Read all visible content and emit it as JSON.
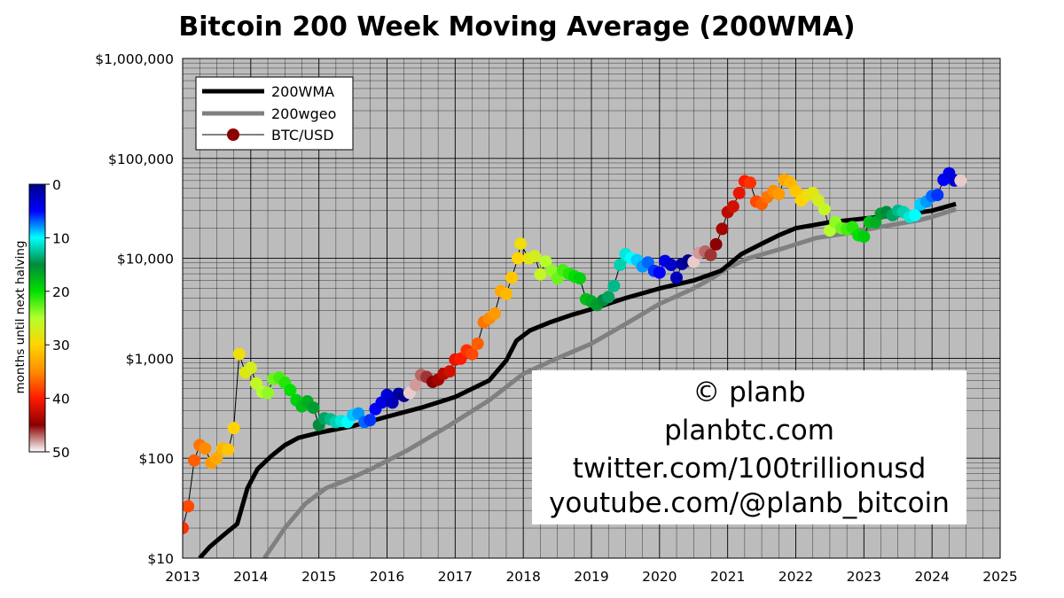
{
  "chart_data": {
    "type": "scatter",
    "title": "Bitcoin 200 Week Moving Average (200WMA)",
    "xlabel": "",
    "ylabel": "",
    "yscale": "log",
    "xlim": [
      2013,
      2025
    ],
    "ylim": [
      10,
      1000000
    ],
    "x_ticks": [
      "2013",
      "2014",
      "2015",
      "2016",
      "2017",
      "2018",
      "2019",
      "2020",
      "2021",
      "2022",
      "2023",
      "2024",
      "2025"
    ],
    "y_ticks": [
      {
        "value": 10,
        "label": "$10"
      },
      {
        "value": 100,
        "label": "$100"
      },
      {
        "value": 1000,
        "label": "$1,000"
      },
      {
        "value": 10000,
        "label": "$10,000"
      },
      {
        "value": 100000,
        "label": "$100,000"
      },
      {
        "value": 1000000,
        "label": "$1,000,000"
      }
    ],
    "grid": true,
    "background": "#bcbcbc",
    "legend_position": "top-left",
    "legend": [
      {
        "label": "200WMA",
        "color": "#000000",
        "kind": "thick-line"
      },
      {
        "label": "200wgeo",
        "color": "#808080",
        "kind": "thick-line"
      },
      {
        "label": "BTC/USD",
        "color": "#8b0000",
        "kind": "line-marker"
      }
    ],
    "colorbar": {
      "label": "months until next halving",
      "min": 0,
      "max": 50,
      "ticks": [
        "0",
        "10",
        "20",
        "30",
        "40",
        "50"
      ]
    },
    "credits": [
      "© planb",
      "planbtc.com",
      "twitter.com/100trillionusd",
      "youtube.com/@planb_bitcoin"
    ],
    "series": [
      {
        "name": "200WMA",
        "color": "#000000",
        "points": [
          [
            2013.25,
            10
          ],
          [
            2013.4,
            13
          ],
          [
            2013.6,
            17
          ],
          [
            2013.8,
            22
          ],
          [
            2013.95,
            50
          ],
          [
            2014.1,
            78
          ],
          [
            2014.3,
            105
          ],
          [
            2014.5,
            135
          ],
          [
            2014.7,
            160
          ],
          [
            2015.0,
            180
          ],
          [
            2015.5,
            210
          ],
          [
            2016.0,
            260
          ],
          [
            2016.5,
            320
          ],
          [
            2017.0,
            410
          ],
          [
            2017.5,
            600
          ],
          [
            2017.75,
            950
          ],
          [
            2017.9,
            1500
          ],
          [
            2018.1,
            1900
          ],
          [
            2018.4,
            2300
          ],
          [
            2018.7,
            2700
          ],
          [
            2019.0,
            3100
          ],
          [
            2019.5,
            4000
          ],
          [
            2020.0,
            5000
          ],
          [
            2020.5,
            6000
          ],
          [
            2020.9,
            7500
          ],
          [
            2021.0,
            8500
          ],
          [
            2021.2,
            11000
          ],
          [
            2021.5,
            14000
          ],
          [
            2021.75,
            17000
          ],
          [
            2022.0,
            20000
          ],
          [
            2022.5,
            23000
          ],
          [
            2023.0,
            25000
          ],
          [
            2023.5,
            27000
          ],
          [
            2024.0,
            30000
          ],
          [
            2024.35,
            35000
          ]
        ]
      },
      {
        "name": "200wgeo",
        "color": "#808080",
        "points": [
          [
            2014.2,
            10
          ],
          [
            2014.5,
            20
          ],
          [
            2014.8,
            35
          ],
          [
            2015.1,
            50
          ],
          [
            2015.4,
            60
          ],
          [
            2015.8,
            80
          ],
          [
            2016.3,
            120
          ],
          [
            2016.9,
            210
          ],
          [
            2017.5,
            380
          ],
          [
            2018.0,
            700
          ],
          [
            2018.5,
            1000
          ],
          [
            2019.0,
            1400
          ],
          [
            2019.5,
            2200
          ],
          [
            2020.0,
            3500
          ],
          [
            2020.5,
            5000
          ],
          [
            2020.8,
            6500
          ],
          [
            2021.0,
            8000
          ],
          [
            2021.3,
            10000
          ],
          [
            2021.8,
            12500
          ],
          [
            2022.3,
            16000
          ],
          [
            2022.8,
            18000
          ],
          [
            2023.3,
            21000
          ],
          [
            2023.8,
            24000
          ],
          [
            2024.0,
            26000
          ],
          [
            2024.35,
            31000
          ]
        ]
      },
      {
        "name": "BTC/USD",
        "value_key": "months_until_next_halving",
        "points": [
          [
            2013.0,
            20,
            39
          ],
          [
            2013.08,
            33,
            38
          ],
          [
            2013.17,
            95,
            37
          ],
          [
            2013.25,
            135,
            36
          ],
          [
            2013.33,
            125,
            35
          ],
          [
            2013.42,
            90,
            34
          ],
          [
            2013.5,
            100,
            33
          ],
          [
            2013.58,
            125,
            32
          ],
          [
            2013.67,
            122,
            31
          ],
          [
            2013.75,
            200,
            30
          ],
          [
            2013.83,
            1100,
            29
          ],
          [
            2013.92,
            720,
            28
          ],
          [
            2014.0,
            800,
            27
          ],
          [
            2014.08,
            560,
            26
          ],
          [
            2014.17,
            460,
            25
          ],
          [
            2014.25,
            450,
            24
          ],
          [
            2014.33,
            620,
            23
          ],
          [
            2014.42,
            640,
            22
          ],
          [
            2014.5,
            570,
            21
          ],
          [
            2014.58,
            480,
            20
          ],
          [
            2014.67,
            380,
            19
          ],
          [
            2014.75,
            330,
            18
          ],
          [
            2014.83,
            370,
            17
          ],
          [
            2014.92,
            320,
            16
          ],
          [
            2015.0,
            215,
            15
          ],
          [
            2015.08,
            250,
            14
          ],
          [
            2015.17,
            245,
            13
          ],
          [
            2015.25,
            230,
            12
          ],
          [
            2015.33,
            235,
            11
          ],
          [
            2015.42,
            230,
            10
          ],
          [
            2015.5,
            270,
            9
          ],
          [
            2015.58,
            280,
            8
          ],
          [
            2015.67,
            230,
            7
          ],
          [
            2015.75,
            240,
            6
          ],
          [
            2015.83,
            310,
            5
          ],
          [
            2015.92,
            360,
            4
          ],
          [
            2016.0,
            430,
            3
          ],
          [
            2016.08,
            360,
            2
          ],
          [
            2016.17,
            440,
            1
          ],
          [
            2016.25,
            420,
            0
          ],
          [
            2016.33,
            450,
            49
          ],
          [
            2016.42,
            540,
            48
          ],
          [
            2016.5,
            680,
            47
          ],
          [
            2016.58,
            650,
            46
          ],
          [
            2016.67,
            580,
            45
          ],
          [
            2016.75,
            610,
            44
          ],
          [
            2016.83,
            700,
            43
          ],
          [
            2016.92,
            740,
            42
          ],
          [
            2017.0,
            970,
            41
          ],
          [
            2017.08,
            990,
            40
          ],
          [
            2017.17,
            1200,
            39
          ],
          [
            2017.25,
            1100,
            38
          ],
          [
            2017.33,
            1400,
            37
          ],
          [
            2017.42,
            2300,
            36
          ],
          [
            2017.5,
            2500,
            35
          ],
          [
            2017.58,
            2800,
            34
          ],
          [
            2017.67,
            4700,
            33
          ],
          [
            2017.75,
            4400,
            32
          ],
          [
            2017.83,
            6400,
            31
          ],
          [
            2017.92,
            10000,
            30
          ],
          [
            2017.96,
            14000,
            29
          ],
          [
            2018.08,
            10000,
            28
          ],
          [
            2018.17,
            10500,
            27
          ],
          [
            2018.25,
            6900,
            26
          ],
          [
            2018.33,
            9300,
            25
          ],
          [
            2018.42,
            7500,
            24
          ],
          [
            2018.5,
            6300,
            23
          ],
          [
            2018.58,
            7600,
            22
          ],
          [
            2018.67,
            7000,
            21
          ],
          [
            2018.75,
            6600,
            20
          ],
          [
            2018.83,
            6300,
            19
          ],
          [
            2018.92,
            3900,
            18
          ],
          [
            2019.0,
            3700,
            17
          ],
          [
            2019.08,
            3400,
            16
          ],
          [
            2019.17,
            3800,
            15
          ],
          [
            2019.25,
            4100,
            14
          ],
          [
            2019.33,
            5300,
            13
          ],
          [
            2019.42,
            8600,
            12
          ],
          [
            2019.5,
            11000,
            11
          ],
          [
            2019.58,
            10000,
            10
          ],
          [
            2019.67,
            9600,
            9
          ],
          [
            2019.75,
            8300,
            8
          ],
          [
            2019.83,
            9100,
            7
          ],
          [
            2019.92,
            7500,
            6
          ],
          [
            2020.0,
            7200,
            5
          ],
          [
            2020.08,
            9400,
            4
          ],
          [
            2020.17,
            8600,
            3
          ],
          [
            2020.25,
            6400,
            2
          ],
          [
            2020.33,
            8800,
            1
          ],
          [
            2020.42,
            9500,
            0
          ],
          [
            2020.5,
            9200,
            49
          ],
          [
            2020.58,
            11300,
            48
          ],
          [
            2020.67,
            11700,
            47
          ],
          [
            2020.75,
            10800,
            46
          ],
          [
            2020.83,
            13800,
            45
          ],
          [
            2020.92,
            19700,
            44
          ],
          [
            2021.0,
            29000,
            43
          ],
          [
            2021.08,
            33000,
            42
          ],
          [
            2021.17,
            45000,
            41
          ],
          [
            2021.25,
            59000,
            40
          ],
          [
            2021.33,
            57000,
            39
          ],
          [
            2021.42,
            37000,
            38
          ],
          [
            2021.5,
            35000,
            37
          ],
          [
            2021.58,
            41000,
            36
          ],
          [
            2021.67,
            47000,
            35
          ],
          [
            2021.75,
            44000,
            34
          ],
          [
            2021.83,
            61000,
            33
          ],
          [
            2021.92,
            57000,
            32
          ],
          [
            2022.0,
            47000,
            31
          ],
          [
            2022.08,
            38000,
            30
          ],
          [
            2022.17,
            43000,
            29
          ],
          [
            2022.25,
            45000,
            28
          ],
          [
            2022.33,
            38000,
            27
          ],
          [
            2022.42,
            31000,
            26
          ],
          [
            2022.5,
            19000,
            25
          ],
          [
            2022.58,
            23000,
            24
          ],
          [
            2022.67,
            20000,
            23
          ],
          [
            2022.75,
            19500,
            22
          ],
          [
            2022.83,
            20500,
            21
          ],
          [
            2022.92,
            17000,
            20
          ],
          [
            2023.0,
            16500,
            19
          ],
          [
            2023.08,
            23000,
            18
          ],
          [
            2023.17,
            23000,
            17
          ],
          [
            2023.25,
            28000,
            16
          ],
          [
            2023.33,
            29000,
            15
          ],
          [
            2023.42,
            27000,
            14
          ],
          [
            2023.5,
            30000,
            13
          ],
          [
            2023.58,
            29000,
            12
          ],
          [
            2023.67,
            26000,
            11
          ],
          [
            2023.75,
            27000,
            10
          ],
          [
            2023.83,
            34500,
            9
          ],
          [
            2023.92,
            37000,
            8
          ],
          [
            2024.0,
            42000,
            7
          ],
          [
            2024.08,
            43000,
            6
          ],
          [
            2024.17,
            61000,
            5
          ],
          [
            2024.25,
            71000,
            4
          ],
          [
            2024.33,
            60000,
            3
          ],
          [
            2024.42,
            60000,
            49
          ]
        ]
      }
    ]
  }
}
